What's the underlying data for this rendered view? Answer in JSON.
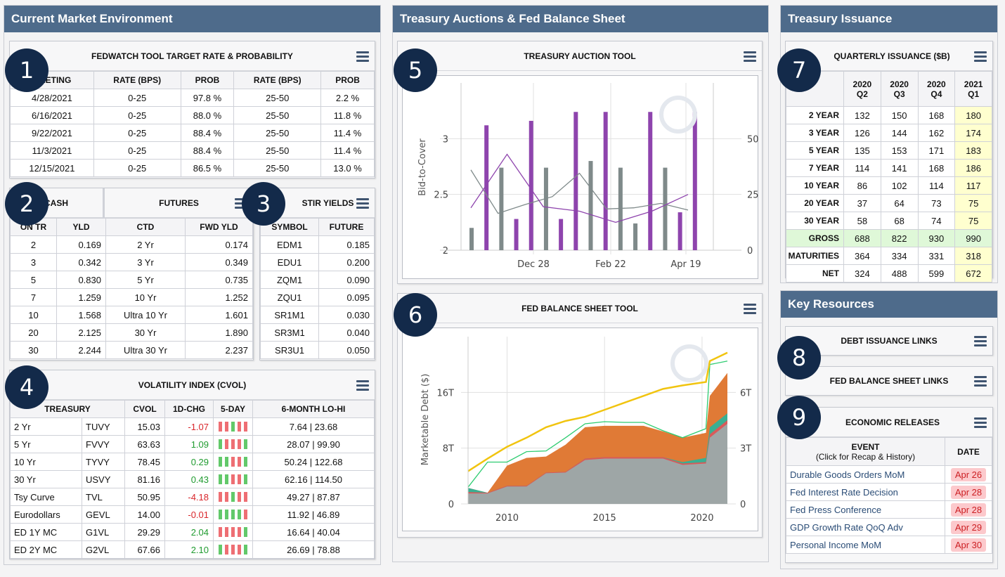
{
  "sections": {
    "market": "Current Market Environment",
    "auctions": "Treasury Auctions & Fed Balance Sheet",
    "issuance": "Treasury Issuance",
    "resources": "Key Resources"
  },
  "badges": [
    "1",
    "2",
    "3",
    "4",
    "5",
    "6",
    "7",
    "8",
    "9"
  ],
  "fedwatch": {
    "title": "FEDWATCH TOOL TARGET RATE & PROBABILITY",
    "headers": [
      "MEETING",
      "RATE (BPS)",
      "PROB",
      "RATE (BPS)",
      "PROB"
    ],
    "rows": [
      [
        "4/28/2021",
        "0-25",
        "97.8 %",
        "25-50",
        "2.2 %"
      ],
      [
        "6/16/2021",
        "0-25",
        "88.0 %",
        "25-50",
        "11.8 %"
      ],
      [
        "9/22/2021",
        "0-25",
        "88.4 %",
        "25-50",
        "11.4 %"
      ],
      [
        "11/3/2021",
        "0-25",
        "88.4 %",
        "25-50",
        "11.4 %"
      ],
      [
        "12/15/2021",
        "0-25",
        "86.5 %",
        "25-50",
        "13.0 %"
      ]
    ]
  },
  "cash_futures": {
    "cash_title": "CASH",
    "futures_title": "FUTURES",
    "headers": [
      "ON TR",
      "YLD",
      "CTD",
      "FWD YLD"
    ],
    "rows": [
      [
        "2",
        "0.169",
        "2 Yr",
        "0.174"
      ],
      [
        "3",
        "0.342",
        "3 Yr",
        "0.349"
      ],
      [
        "5",
        "0.830",
        "5 Yr",
        "0.735"
      ],
      [
        "7",
        "1.259",
        "10 Yr",
        "1.252"
      ],
      [
        "10",
        "1.568",
        "Ultra 10 Yr",
        "1.601"
      ],
      [
        "20",
        "2.125",
        "30 Yr",
        "1.890"
      ],
      [
        "30",
        "2.244",
        "Ultra 30 Yr",
        "2.237"
      ]
    ]
  },
  "stir": {
    "title": "STIR YIELDS",
    "headers": [
      "SYMBOL",
      "FUTURE"
    ],
    "rows": [
      [
        "EDM1",
        "0.185"
      ],
      [
        "EDU1",
        "0.200"
      ],
      [
        "ZQM1",
        "0.090"
      ],
      [
        "ZQU1",
        "0.095"
      ],
      [
        "SR1M1",
        "0.030"
      ],
      [
        "SR3M1",
        "0.040"
      ],
      [
        "SR3U1",
        "0.050"
      ]
    ]
  },
  "cvol": {
    "title": "VOLATILITY INDEX (CVOL)",
    "headers": [
      "TREASURY",
      "CVOL",
      "1D-CHG",
      "5-DAY",
      "6-MONTH LO-HI"
    ],
    "rows": [
      {
        "name": "2 Yr",
        "sym": "TUVY",
        "cvol": "15.03",
        "chg": "-1.07",
        "dir": "neg",
        "spark": [
          "dn",
          "dn",
          "up",
          "dn",
          "dn"
        ],
        "range": "7.64 | 23.68"
      },
      {
        "name": "5 Yr",
        "sym": "FVVY",
        "cvol": "63.63",
        "chg": "1.09",
        "dir": "pos",
        "spark": [
          "up",
          "dn",
          "dn",
          "dn",
          "up"
        ],
        "range": "28.07 | 99.90"
      },
      {
        "name": "10 Yr",
        "sym": "TYVY",
        "cvol": "78.45",
        "chg": "0.29",
        "dir": "pos",
        "spark": [
          "up",
          "up",
          "dn",
          "dn",
          "up"
        ],
        "range": "50.24 | 122.68"
      },
      {
        "name": "30 Yr",
        "sym": "USVY",
        "cvol": "81.16",
        "chg": "0.43",
        "dir": "pos",
        "spark": [
          "up",
          "up",
          "dn",
          "dn",
          "up"
        ],
        "range": "62.16 | 114.50"
      },
      {
        "name": "Tsy Curve",
        "sym": "TVL",
        "cvol": "50.95",
        "chg": "-4.18",
        "dir": "neg",
        "spark": [
          "dn",
          "dn",
          "up",
          "dn",
          "dn"
        ],
        "range": "49.27 | 87.87"
      },
      {
        "name": "Eurodollars",
        "sym": "GEVL",
        "cvol": "14.00",
        "chg": "-0.01",
        "dir": "neg",
        "spark": [
          "up",
          "up",
          "up",
          "up",
          "dn"
        ],
        "range": "11.92 | 46.89"
      },
      {
        "name": "ED 1Y MC",
        "sym": "G1VL",
        "cvol": "29.29",
        "chg": "2.04",
        "dir": "pos",
        "spark": [
          "dn",
          "dn",
          "dn",
          "dn",
          "up"
        ],
        "range": "16.64 | 40.04"
      },
      {
        "name": "ED 2Y MC",
        "sym": "G2VL",
        "cvol": "67.66",
        "chg": "2.10",
        "dir": "pos",
        "spark": [
          "up",
          "dn",
          "dn",
          "dn",
          "up"
        ],
        "range": "26.69 | 78.88"
      }
    ]
  },
  "auction_tool": {
    "title": "TREASURY AUCTION TOOL"
  },
  "balance_tool": {
    "title": "FED BALANCE SHEET TOOL"
  },
  "chart_data": [
    {
      "type": "bar",
      "title": "TREASURY AUCTION TOOL",
      "ylabel": "Bid-to-Cover",
      "ylim": [
        2,
        3.5
      ],
      "y2lim": [
        0,
        75
      ],
      "yticks": [
        "2",
        "2.5",
        "3"
      ],
      "y2ticks": [
        "0",
        "25B",
        "50B"
      ],
      "xticks": [
        "Dec 28",
        "Feb 22",
        "Apr 19"
      ],
      "colors": {
        "gray": "#7f8a8a",
        "purple": "#8e44ad"
      },
      "series": [
        {
          "name": "gray bars (size, $B)",
          "values": [
            10,
            0,
            37,
            0,
            0,
            37,
            0,
            0,
            40,
            0,
            37,
            12,
            0,
            37,
            0,
            0
          ]
        },
        {
          "name": "purple bars (size, $B)",
          "values": [
            0,
            56,
            0,
            14,
            58,
            0,
            14,
            62,
            0,
            62,
            0,
            0,
            62,
            0,
            17,
            62
          ]
        },
        {
          "name": "gray line (bid-to-cover)",
          "values": [
            2.72,
            2.33,
            2.41,
            2.48,
            2.69,
            2.37,
            2.38,
            2.42,
            2.36
          ]
        },
        {
          "name": "purple line (bid-to-cover)",
          "values": [
            2.38,
            2.86,
            2.39,
            2.35,
            2.25,
            2.35,
            2.5
          ]
        }
      ]
    },
    {
      "type": "area",
      "title": "FED BALANCE SHEET TOOL",
      "ylabel": "Marketable Debt ($)",
      "yticks": [
        "0",
        "8T",
        "16T"
      ],
      "y2ticks": [
        "0",
        "3T",
        "6T"
      ],
      "xticks": [
        "2010",
        "2015",
        "2020"
      ],
      "x": [
        2008,
        2009,
        2010,
        2011,
        2012,
        2013,
        2014,
        2015,
        2016,
        2017,
        2018,
        2019,
        2020.2,
        2020.4,
        2021.3
      ],
      "series": [
        {
          "name": "gray base",
          "color": "#9ea6a6",
          "values": [
            1.5,
            1.5,
            2.5,
            2.5,
            4.4,
            4.5,
            6.3,
            6.5,
            6.5,
            6.5,
            6.5,
            5.6,
            5.8,
            9.5,
            11.5
          ]
        },
        {
          "name": "red",
          "color": "#d85a5a",
          "values": [
            1.7,
            1.6,
            2.6,
            2.6,
            4.5,
            4.6,
            6.5,
            6.7,
            6.7,
            6.7,
            6.7,
            5.8,
            6.0,
            10.0,
            12.0
          ]
        },
        {
          "name": "teal",
          "color": "#3aaf92",
          "values": [
            2.3,
            1.6,
            2.6,
            2.6,
            4.5,
            4.6,
            6.5,
            6.7,
            6.7,
            6.7,
            6.7,
            6.0,
            6.6,
            11.0,
            13.0
          ]
        },
        {
          "name": "orange",
          "color": "#e07a36",
          "values": [
            2.3,
            1.6,
            5.5,
            6.6,
            6.8,
            8.5,
            11.0,
            11.2,
            11.2,
            11.2,
            10.4,
            9.5,
            10.2,
            15.5,
            18.8
          ]
        },
        {
          "name": "green line",
          "color": "#2ecc71",
          "values": [
            2.4,
            6.0,
            6.0,
            7.5,
            7.6,
            9.5,
            11.5,
            11.8,
            11.7,
            11.7,
            10.5,
            9.5,
            10.8,
            20.0,
            20.5
          ]
        },
        {
          "name": "yellow line",
          "color": "#f1c40f",
          "values": [
            4.7,
            6.5,
            8.2,
            9.5,
            11.0,
            11.9,
            12.5,
            13.5,
            14.5,
            15.5,
            16.5,
            17.0,
            17.5,
            20.5,
            21.7
          ]
        }
      ]
    }
  ],
  "quarterly": {
    "title": "QUARTERLY ISSUANCE ($B)",
    "headers": [
      [
        "2020",
        "Q2"
      ],
      [
        "2020",
        "Q3"
      ],
      [
        "2020",
        "Q4"
      ],
      [
        "2021",
        "Q1"
      ]
    ],
    "rows": [
      {
        "label": "2 YEAR",
        "vals": [
          "132",
          "150",
          "168",
          "180"
        ]
      },
      {
        "label": "3 YEAR",
        "vals": [
          "126",
          "144",
          "162",
          "174"
        ]
      },
      {
        "label": "5 YEAR",
        "vals": [
          "135",
          "153",
          "171",
          "183"
        ]
      },
      {
        "label": "7 YEAR",
        "vals": [
          "114",
          "141",
          "168",
          "186"
        ]
      },
      {
        "label": "10 YEAR",
        "vals": [
          "86",
          "102",
          "114",
          "117"
        ]
      },
      {
        "label": "20 YEAR",
        "vals": [
          "37",
          "64",
          "73",
          "75"
        ]
      },
      {
        "label": "30 YEAR",
        "vals": [
          "58",
          "68",
          "74",
          "75"
        ]
      },
      {
        "label": "GROSS",
        "vals": [
          "688",
          "822",
          "930",
          "990"
        ],
        "gross": true
      },
      {
        "label": "MATURITIES",
        "vals": [
          "364",
          "334",
          "331",
          "318"
        ]
      },
      {
        "label": "NET",
        "vals": [
          "324",
          "488",
          "599",
          "672"
        ]
      }
    ]
  },
  "resources": {
    "debt_links": "DEBT ISSUANCE LINKS",
    "fed_links": "FED BALANCE SHEET LINKS",
    "econ_title": "ECONOMIC RELEASES",
    "econ_headers": {
      "event": "EVENT",
      "event_sub": "(Click for Recap & History)",
      "date": "DATE"
    },
    "econ_rows": [
      {
        "event": "Durable Goods Orders MoM",
        "date": "Apr 26"
      },
      {
        "event": "Fed Interest Rate Decision",
        "date": "Apr 28"
      },
      {
        "event": "Fed Press Conference",
        "date": "Apr 28"
      },
      {
        "event": "GDP Growth Rate QoQ Adv",
        "date": "Apr 29"
      },
      {
        "event": "Personal Income MoM",
        "date": "Apr 30"
      }
    ]
  }
}
